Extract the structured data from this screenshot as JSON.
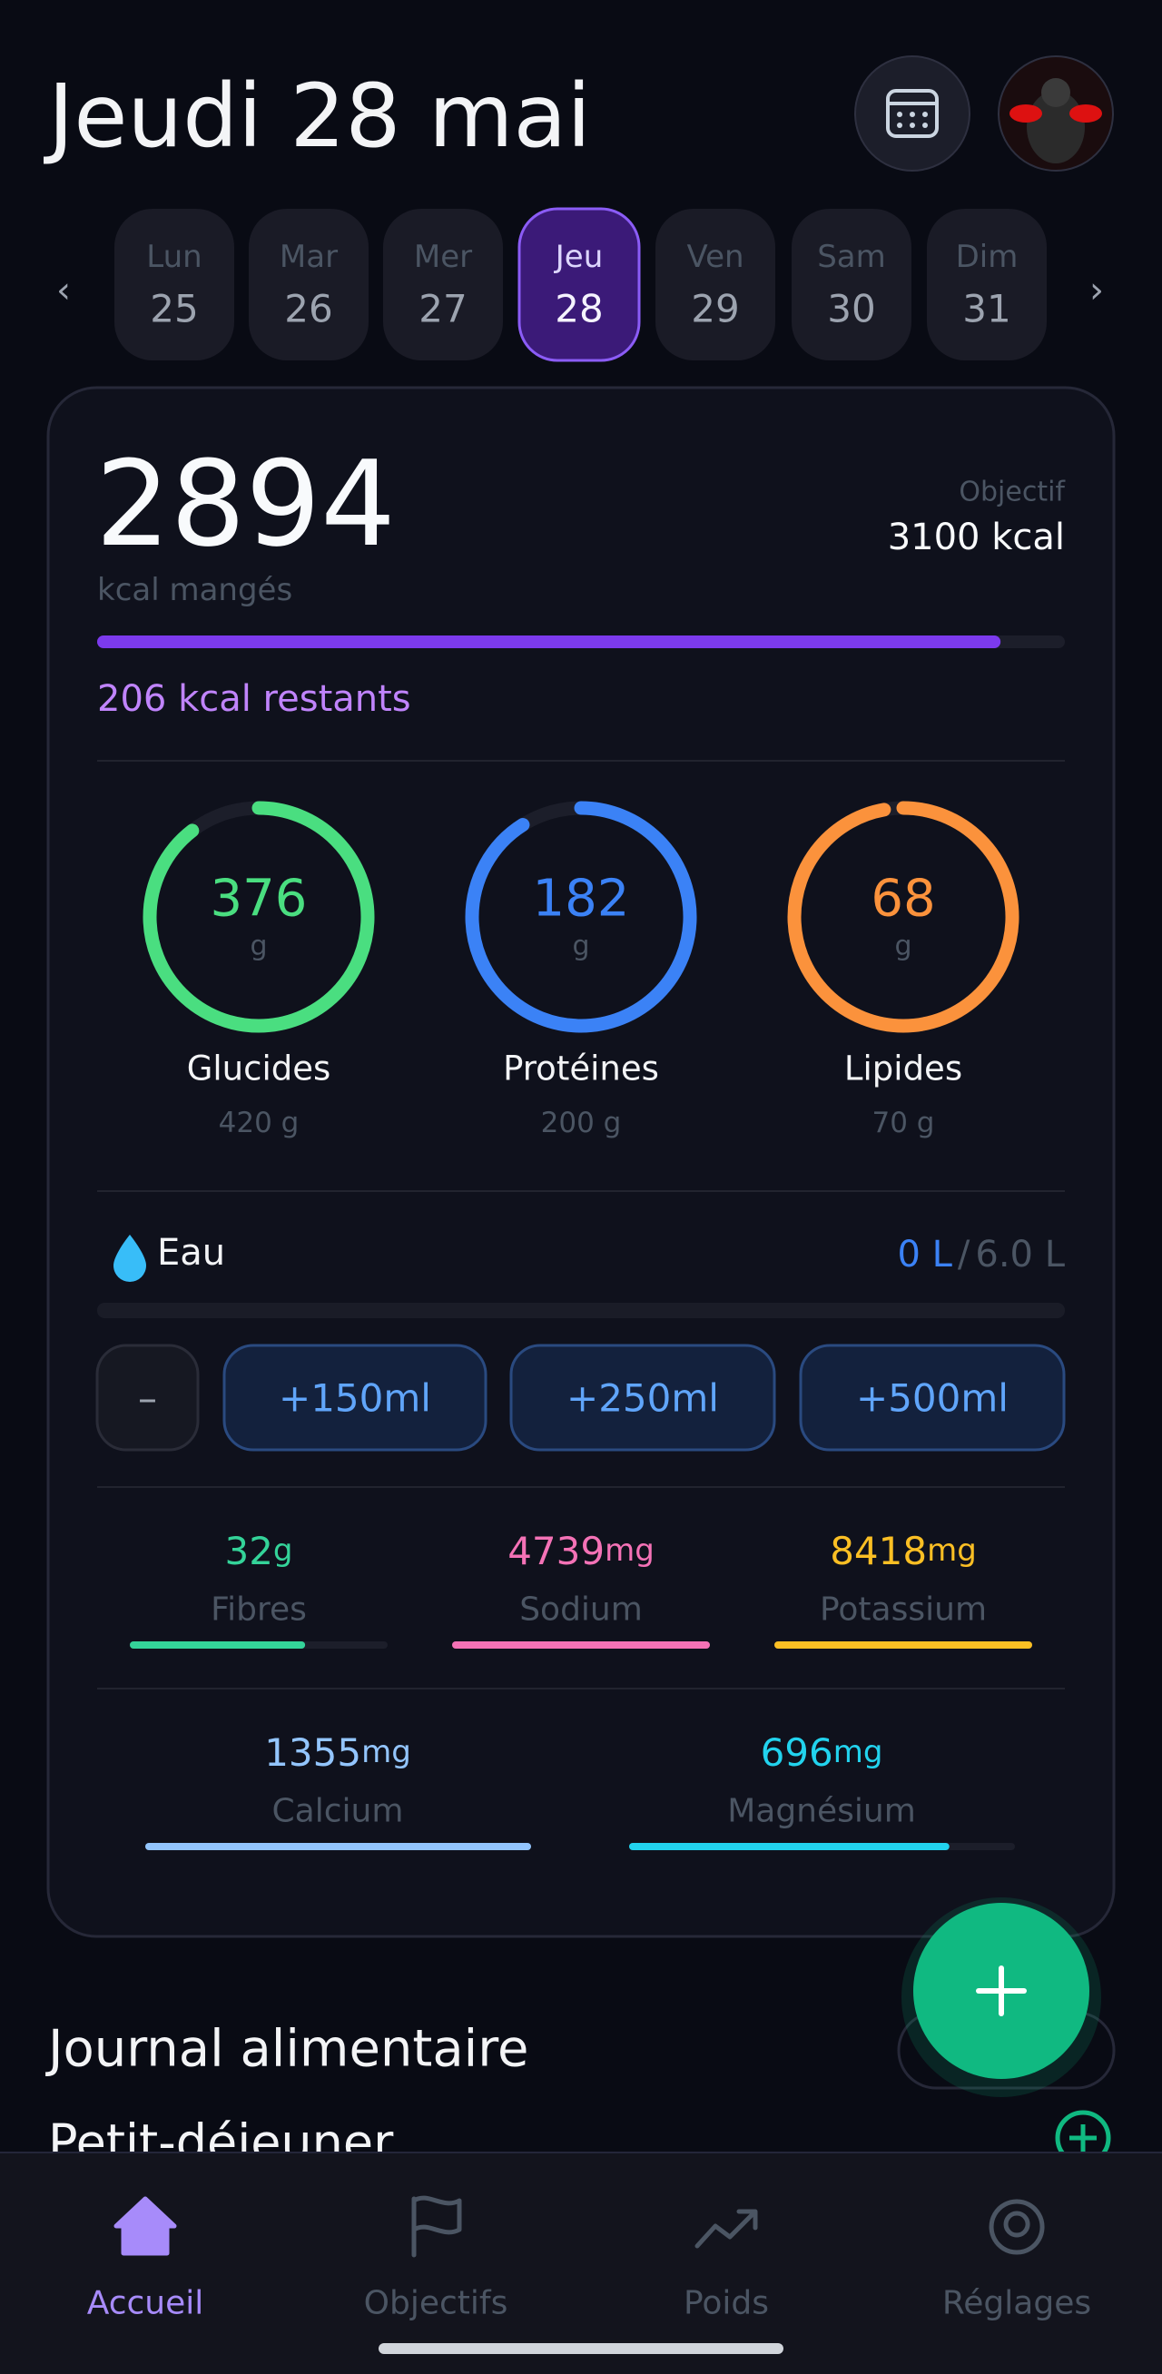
{
  "header": {
    "title": "Jeudi 28 mai"
  },
  "days": [
    {
      "name": "Lun",
      "num": "25"
    },
    {
      "name": "Mar",
      "num": "26"
    },
    {
      "name": "Mer",
      "num": "27"
    },
    {
      "name": "Jeu",
      "num": "28"
    },
    {
      "name": "Ven",
      "num": "29"
    },
    {
      "name": "Sam",
      "num": "30"
    },
    {
      "name": "Dim",
      "num": "31"
    }
  ],
  "selected_day": 3,
  "calories": {
    "eaten": 2894,
    "eaten_label": "kcal mangés",
    "goal_label": "Objectif",
    "goal": "3100 kcal",
    "remaining": "206 kcal restants"
  },
  "macros": [
    {
      "value": 376,
      "unit": "g",
      "name": "Glucides",
      "target": "420 g",
      "color": "#4ade80"
    },
    {
      "value": 182,
      "unit": "g",
      "name": "Protéines",
      "target": "200 g",
      "color": "#3b82f6"
    },
    {
      "value": 68,
      "unit": "g",
      "name": "Lipides",
      "target": "70 g",
      "color": "#fb923c"
    }
  ],
  "water": {
    "label": "Eau",
    "current": "0 L",
    "separator": "/",
    "goal": "6.0 L",
    "buttons": [
      "–",
      "+150ml",
      "+250ml",
      "+500ml"
    ]
  },
  "minerals": [
    {
      "value": "32",
      "unit": "g",
      "name": "Fibres",
      "color": "#34d399"
    },
    {
      "value": "4739",
      "unit": "mg",
      "name": "Sodium",
      "color": "#f472b6"
    },
    {
      "value": "8418",
      "unit": "mg",
      "name": "Potassium",
      "color": "#fbbf24"
    },
    {
      "value": "1355",
      "unit": "mg",
      "name": "Calcium",
      "color": "#93c5fd"
    },
    {
      "value": "696",
      "unit": "mg",
      "name": "Magnésium",
      "color": "#22d3ee"
    }
  ],
  "journal": {
    "title": "Journal alimentaire",
    "meal": "Petit-déjeuner"
  },
  "nav": [
    {
      "label": "Accueil"
    },
    {
      "label": "Objectifs"
    },
    {
      "label": "Poids"
    },
    {
      "label": "Réglages"
    }
  ],
  "active_nav": 0
}
